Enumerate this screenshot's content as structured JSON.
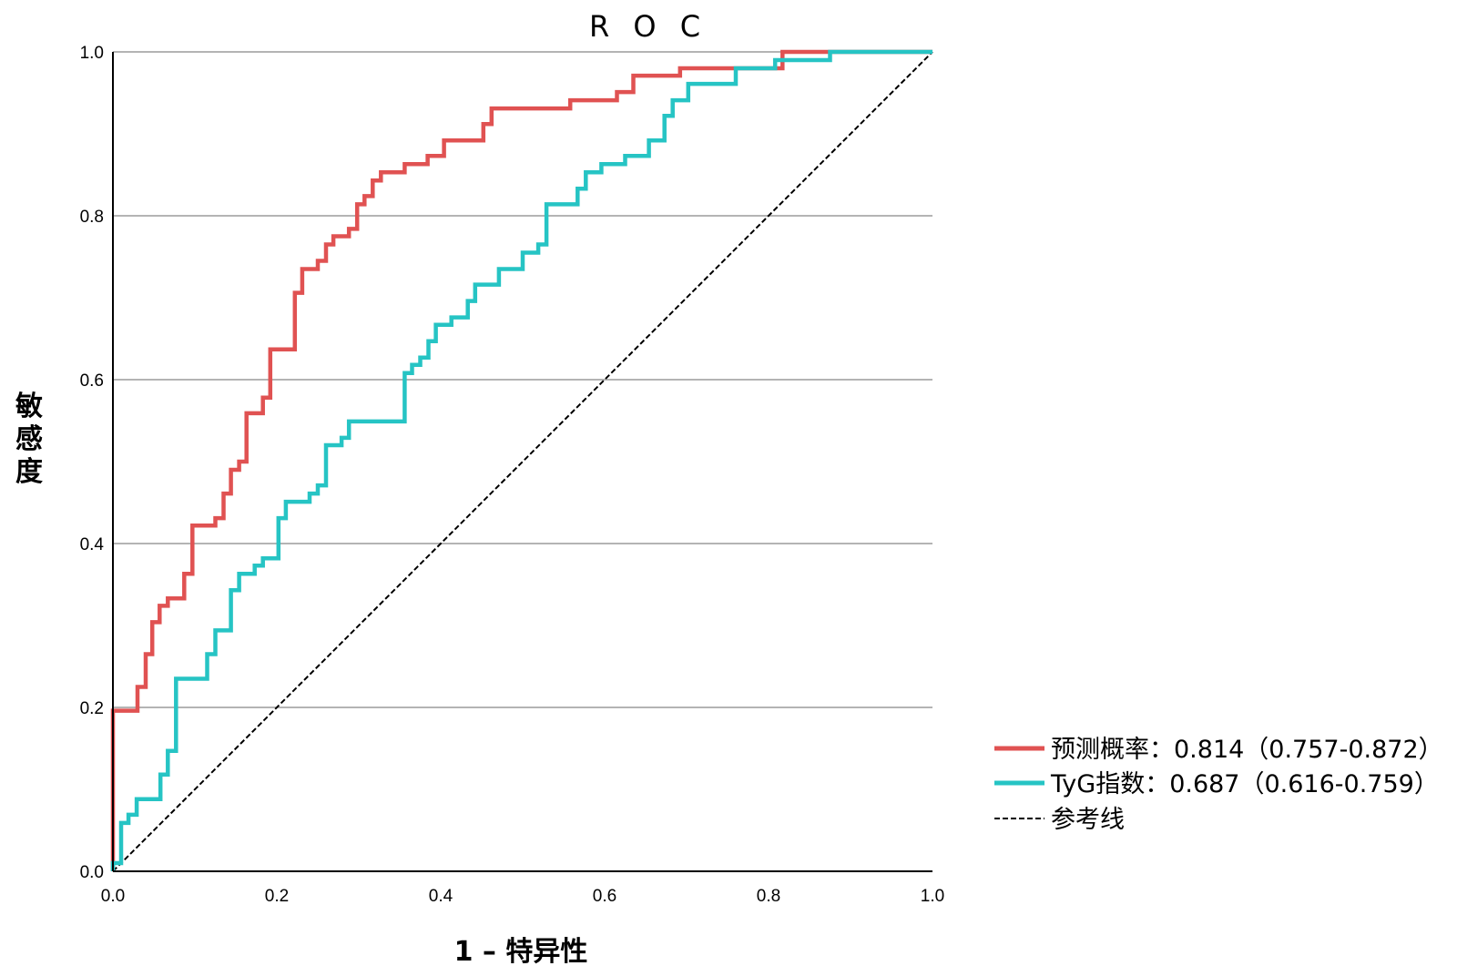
{
  "chart_data": {
    "type": "line",
    "title": "R O C",
    "xlabel": "1 – 特异性",
    "ylabel": "敏感度",
    "xlim": [
      0,
      1
    ],
    "ylim": [
      0,
      1
    ],
    "xticks": [
      "0.0",
      "0.2",
      "0.4",
      "0.6",
      "0.8",
      "1.0"
    ],
    "yticks": [
      "0.0",
      "0.2",
      "0.4",
      "0.6",
      "0.8",
      "1.0"
    ],
    "grid": "horizontal",
    "legend_position": "right",
    "series": [
      {
        "name": "预测概率：0.814（0.757-0.872）",
        "color": "#e05252",
        "style": "step",
        "points": [
          [
            0.0,
            0.0
          ],
          [
            0.0,
            0.196
          ],
          [
            0.03,
            0.196
          ],
          [
            0.03,
            0.225
          ],
          [
            0.04,
            0.225
          ],
          [
            0.04,
            0.265
          ],
          [
            0.048,
            0.265
          ],
          [
            0.048,
            0.304
          ],
          [
            0.057,
            0.304
          ],
          [
            0.057,
            0.324
          ],
          [
            0.067,
            0.324
          ],
          [
            0.067,
            0.333
          ],
          [
            0.087,
            0.333
          ],
          [
            0.087,
            0.363
          ],
          [
            0.097,
            0.363
          ],
          [
            0.097,
            0.422
          ],
          [
            0.125,
            0.422
          ],
          [
            0.125,
            0.431
          ],
          [
            0.135,
            0.431
          ],
          [
            0.135,
            0.461
          ],
          [
            0.144,
            0.461
          ],
          [
            0.144,
            0.49
          ],
          [
            0.154,
            0.49
          ],
          [
            0.154,
            0.5
          ],
          [
            0.163,
            0.5
          ],
          [
            0.163,
            0.559
          ],
          [
            0.183,
            0.559
          ],
          [
            0.183,
            0.578
          ],
          [
            0.192,
            0.578
          ],
          [
            0.192,
            0.637
          ],
          [
            0.222,
            0.637
          ],
          [
            0.222,
            0.706
          ],
          [
            0.231,
            0.706
          ],
          [
            0.231,
            0.735
          ],
          [
            0.25,
            0.735
          ],
          [
            0.25,
            0.745
          ],
          [
            0.26,
            0.745
          ],
          [
            0.26,
            0.765
          ],
          [
            0.269,
            0.765
          ],
          [
            0.269,
            0.775
          ],
          [
            0.288,
            0.775
          ],
          [
            0.288,
            0.784
          ],
          [
            0.298,
            0.784
          ],
          [
            0.298,
            0.814
          ],
          [
            0.307,
            0.814
          ],
          [
            0.307,
            0.824
          ],
          [
            0.317,
            0.824
          ],
          [
            0.317,
            0.843
          ],
          [
            0.327,
            0.843
          ],
          [
            0.327,
            0.853
          ],
          [
            0.356,
            0.853
          ],
          [
            0.356,
            0.863
          ],
          [
            0.384,
            0.863
          ],
          [
            0.384,
            0.873
          ],
          [
            0.404,
            0.873
          ],
          [
            0.404,
            0.892
          ],
          [
            0.452,
            0.892
          ],
          [
            0.452,
            0.912
          ],
          [
            0.462,
            0.912
          ],
          [
            0.462,
            0.931
          ],
          [
            0.558,
            0.931
          ],
          [
            0.558,
            0.941
          ],
          [
            0.615,
            0.941
          ],
          [
            0.615,
            0.951
          ],
          [
            0.635,
            0.951
          ],
          [
            0.635,
            0.971
          ],
          [
            0.692,
            0.971
          ],
          [
            0.692,
            0.98
          ],
          [
            0.817,
            0.98
          ],
          [
            0.817,
            1.0
          ],
          [
            0.875,
            1.0
          ],
          [
            1.0,
            1.0
          ]
        ]
      },
      {
        "name": "TyG指数：0.687（0.616-0.759）",
        "color": "#26c4c4",
        "style": "step",
        "points": [
          [
            0.0,
            0.0
          ],
          [
            0.0,
            0.01
          ],
          [
            0.01,
            0.01
          ],
          [
            0.01,
            0.059
          ],
          [
            0.019,
            0.059
          ],
          [
            0.019,
            0.069
          ],
          [
            0.029,
            0.069
          ],
          [
            0.029,
            0.088
          ],
          [
            0.058,
            0.088
          ],
          [
            0.058,
            0.118
          ],
          [
            0.067,
            0.118
          ],
          [
            0.067,
            0.147
          ],
          [
            0.077,
            0.147
          ],
          [
            0.077,
            0.235
          ],
          [
            0.115,
            0.235
          ],
          [
            0.115,
            0.265
          ],
          [
            0.125,
            0.265
          ],
          [
            0.125,
            0.294
          ],
          [
            0.144,
            0.294
          ],
          [
            0.144,
            0.343
          ],
          [
            0.154,
            0.343
          ],
          [
            0.154,
            0.363
          ],
          [
            0.173,
            0.363
          ],
          [
            0.173,
            0.373
          ],
          [
            0.183,
            0.373
          ],
          [
            0.183,
            0.382
          ],
          [
            0.202,
            0.382
          ],
          [
            0.202,
            0.431
          ],
          [
            0.211,
            0.431
          ],
          [
            0.211,
            0.451
          ],
          [
            0.24,
            0.451
          ],
          [
            0.24,
            0.461
          ],
          [
            0.25,
            0.461
          ],
          [
            0.25,
            0.471
          ],
          [
            0.26,
            0.471
          ],
          [
            0.26,
            0.52
          ],
          [
            0.279,
            0.52
          ],
          [
            0.279,
            0.529
          ],
          [
            0.288,
            0.529
          ],
          [
            0.288,
            0.549
          ],
          [
            0.356,
            0.549
          ],
          [
            0.356,
            0.608
          ],
          [
            0.365,
            0.608
          ],
          [
            0.365,
            0.618
          ],
          [
            0.375,
            0.618
          ],
          [
            0.375,
            0.627
          ],
          [
            0.385,
            0.627
          ],
          [
            0.385,
            0.647
          ],
          [
            0.394,
            0.647
          ],
          [
            0.394,
            0.667
          ],
          [
            0.413,
            0.667
          ],
          [
            0.413,
            0.676
          ],
          [
            0.433,
            0.676
          ],
          [
            0.433,
            0.696
          ],
          [
            0.442,
            0.696
          ],
          [
            0.442,
            0.716
          ],
          [
            0.471,
            0.716
          ],
          [
            0.471,
            0.735
          ],
          [
            0.5,
            0.735
          ],
          [
            0.5,
            0.755
          ],
          [
            0.519,
            0.755
          ],
          [
            0.519,
            0.765
          ],
          [
            0.529,
            0.765
          ],
          [
            0.529,
            0.814
          ],
          [
            0.567,
            0.814
          ],
          [
            0.567,
            0.833
          ],
          [
            0.577,
            0.833
          ],
          [
            0.577,
            0.853
          ],
          [
            0.596,
            0.853
          ],
          [
            0.596,
            0.863
          ],
          [
            0.625,
            0.863
          ],
          [
            0.625,
            0.873
          ],
          [
            0.654,
            0.873
          ],
          [
            0.654,
            0.892
          ],
          [
            0.673,
            0.892
          ],
          [
            0.673,
            0.922
          ],
          [
            0.683,
            0.922
          ],
          [
            0.683,
            0.941
          ],
          [
            0.702,
            0.941
          ],
          [
            0.702,
            0.961
          ],
          [
            0.76,
            0.961
          ],
          [
            0.76,
            0.98
          ],
          [
            0.808,
            0.98
          ],
          [
            0.808,
            0.99
          ],
          [
            0.875,
            0.99
          ],
          [
            0.875,
            1.0
          ],
          [
            1.0,
            1.0
          ]
        ]
      },
      {
        "name": "参考线",
        "color": "#000000",
        "style": "dashed",
        "points": [
          [
            0,
            0
          ],
          [
            1,
            1
          ]
        ]
      }
    ]
  }
}
